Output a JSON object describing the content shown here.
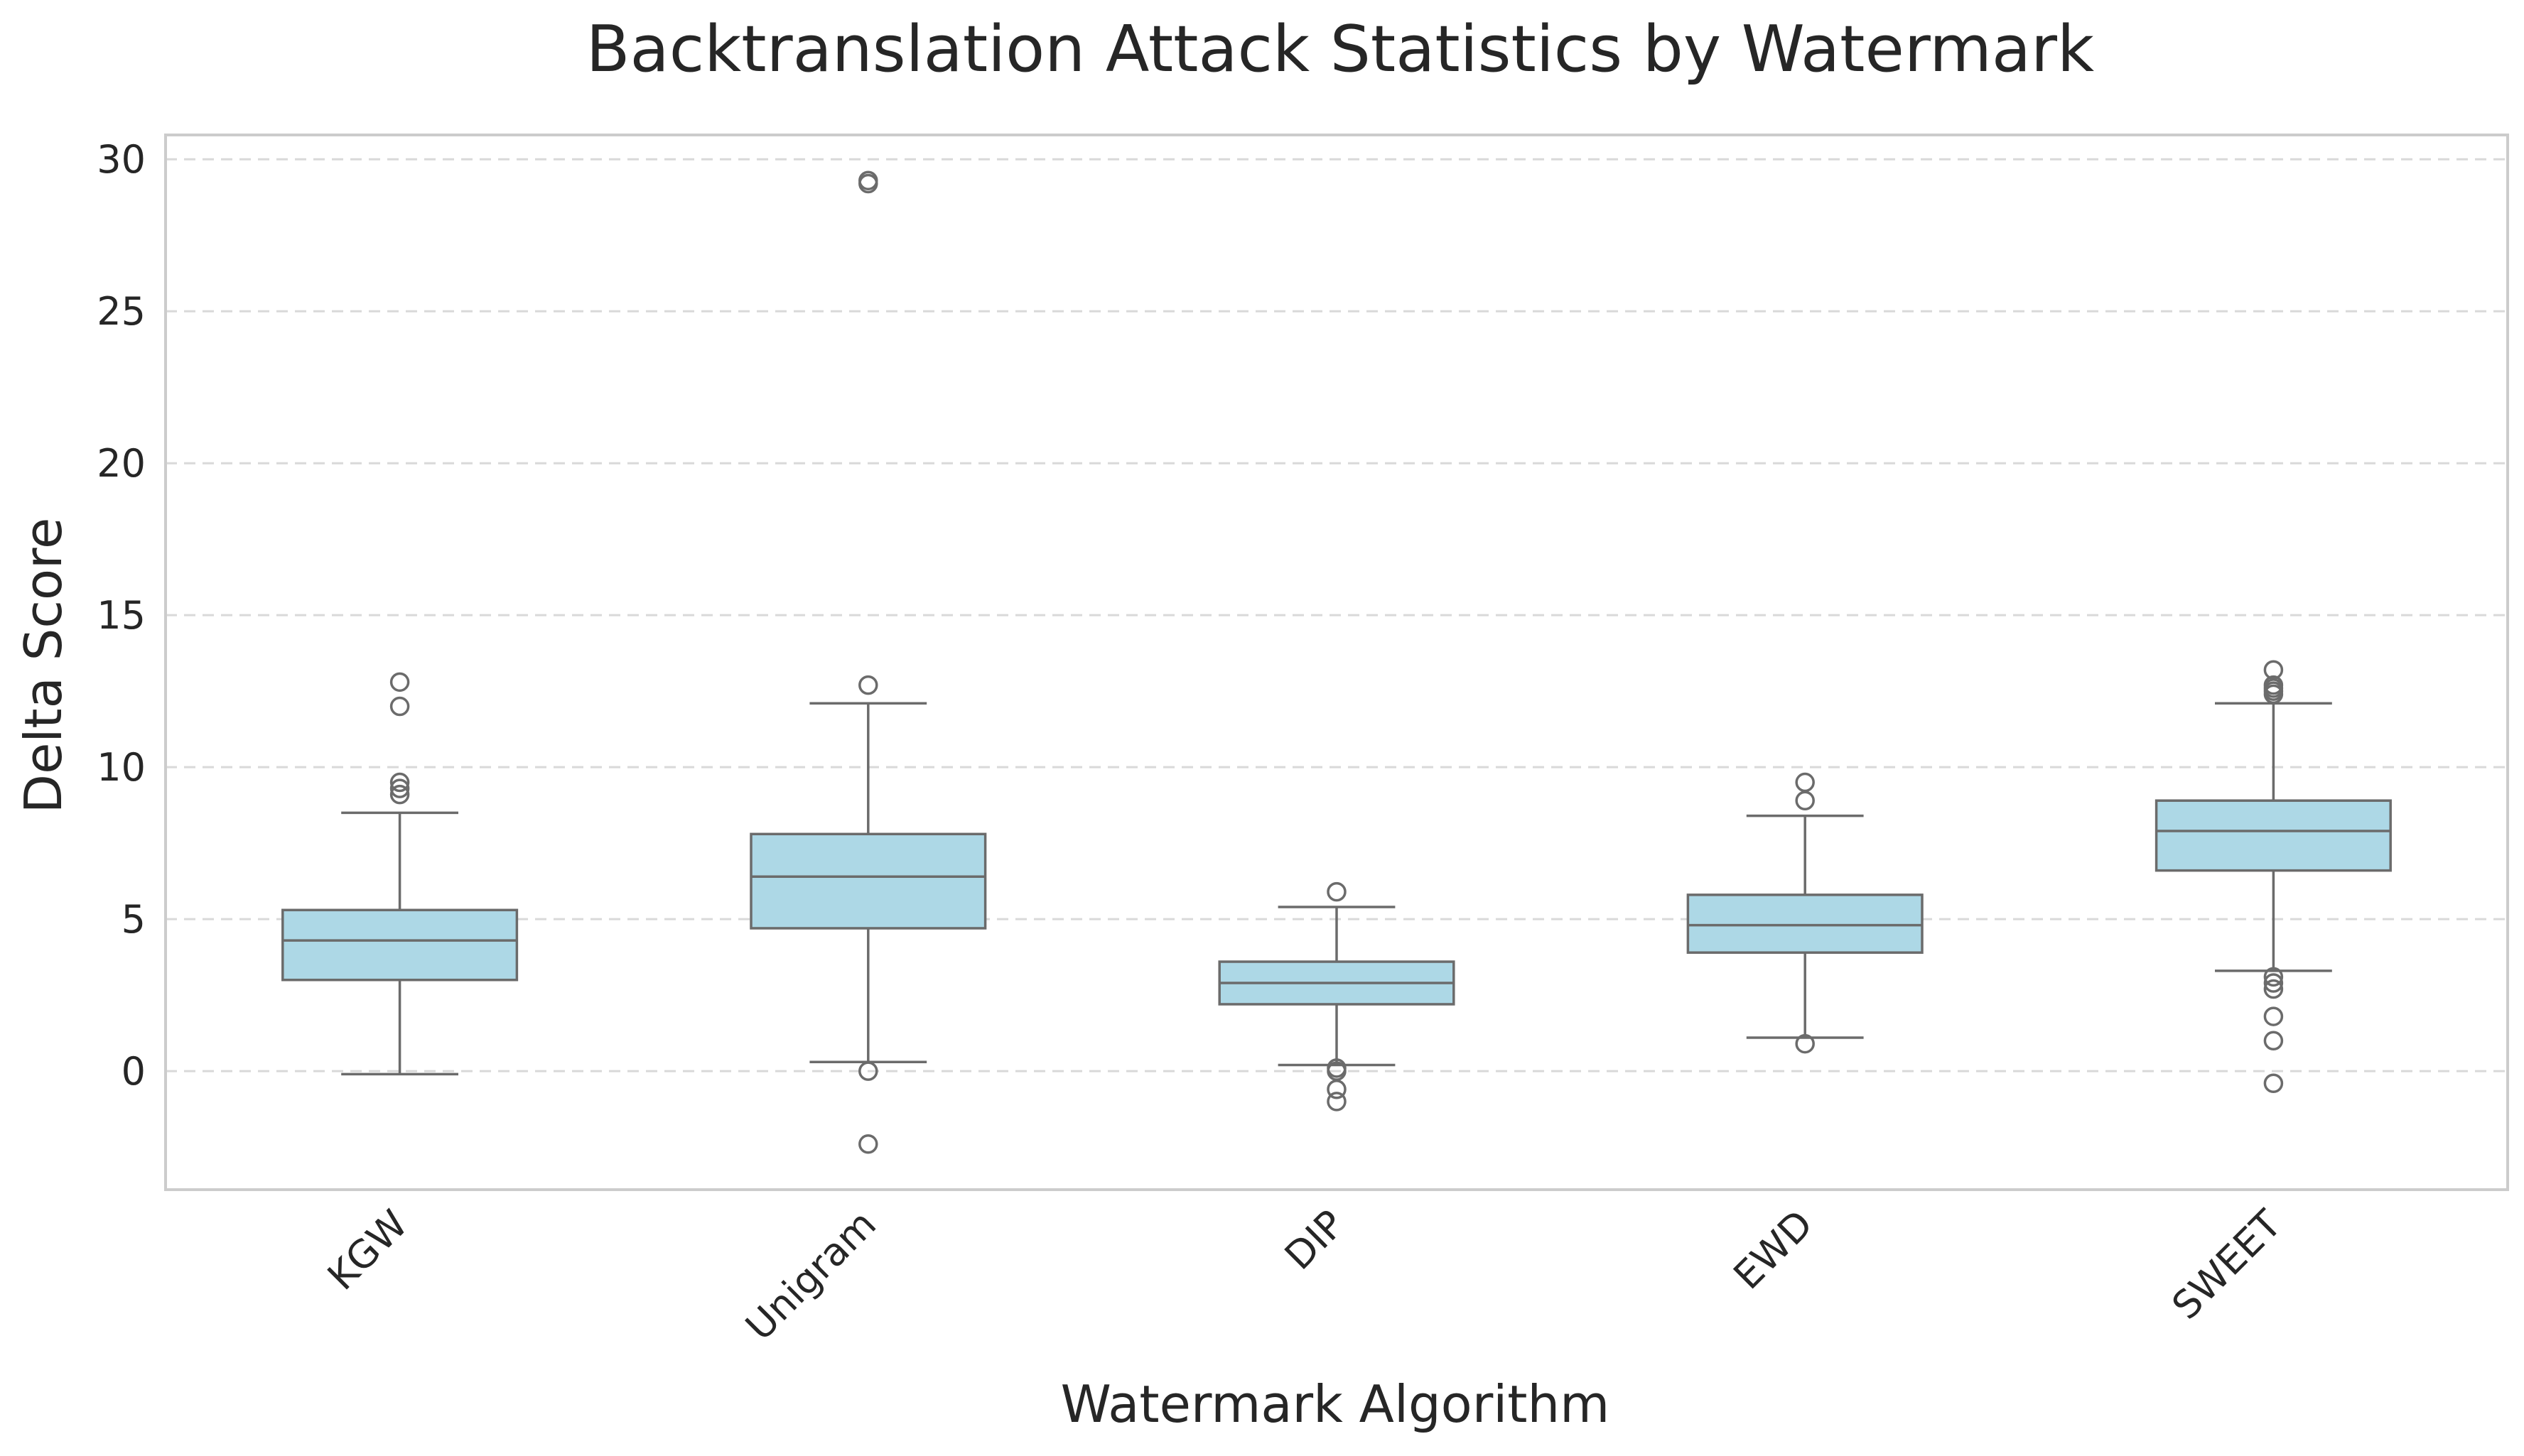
{
  "chart_data": {
    "type": "box",
    "title": "Backtranslation Attack Statistics by Watermark",
    "xlabel": "Watermark Algorithm",
    "ylabel": "Delta Score",
    "categories": [
      "KGW",
      "Unigram",
      "DIP",
      "EWD",
      "SWEET"
    ],
    "ylim": [
      -3.9,
      30.8
    ],
    "yticks": [
      0,
      5,
      10,
      15,
      20,
      25,
      30
    ],
    "grid": "y-dashed",
    "colors": {
      "box_fill": "#add8e6",
      "box_line": "#6b6b6b",
      "grid": "#d9d9d9",
      "frame": "#cccccc",
      "text": "#262626"
    },
    "boxes": [
      {
        "name": "KGW",
        "whisker_low": -0.1,
        "q1": 3.0,
        "median": 4.3,
        "q3": 5.3,
        "whisker_high": 8.5,
        "outliers": [
          9.1,
          9.3,
          9.5,
          12.0,
          12.8
        ]
      },
      {
        "name": "Unigram",
        "whisker_low": 0.3,
        "q1": 4.7,
        "median": 6.4,
        "q3": 7.8,
        "whisker_high": 12.1,
        "outliers": [
          0.0,
          -2.4,
          12.7,
          29.2,
          29.3
        ]
      },
      {
        "name": "DIP",
        "whisker_low": 0.2,
        "q1": 2.2,
        "median": 2.9,
        "q3": 3.6,
        "whisker_high": 5.4,
        "outliers": [
          5.9,
          0.1,
          0.0,
          -0.6,
          -1.0
        ]
      },
      {
        "name": "EWD",
        "whisker_low": 1.1,
        "q1": 3.9,
        "median": 4.8,
        "q3": 5.8,
        "whisker_high": 8.4,
        "outliers": [
          0.9,
          8.9,
          9.5
        ]
      },
      {
        "name": "SWEET",
        "whisker_low": 3.3,
        "q1": 6.6,
        "median": 7.9,
        "q3": 8.9,
        "whisker_high": 12.1,
        "outliers": [
          12.4,
          12.5,
          12.6,
          12.7,
          13.2,
          3.1,
          2.9,
          2.7,
          1.8,
          1.0,
          -0.4
        ]
      }
    ]
  }
}
